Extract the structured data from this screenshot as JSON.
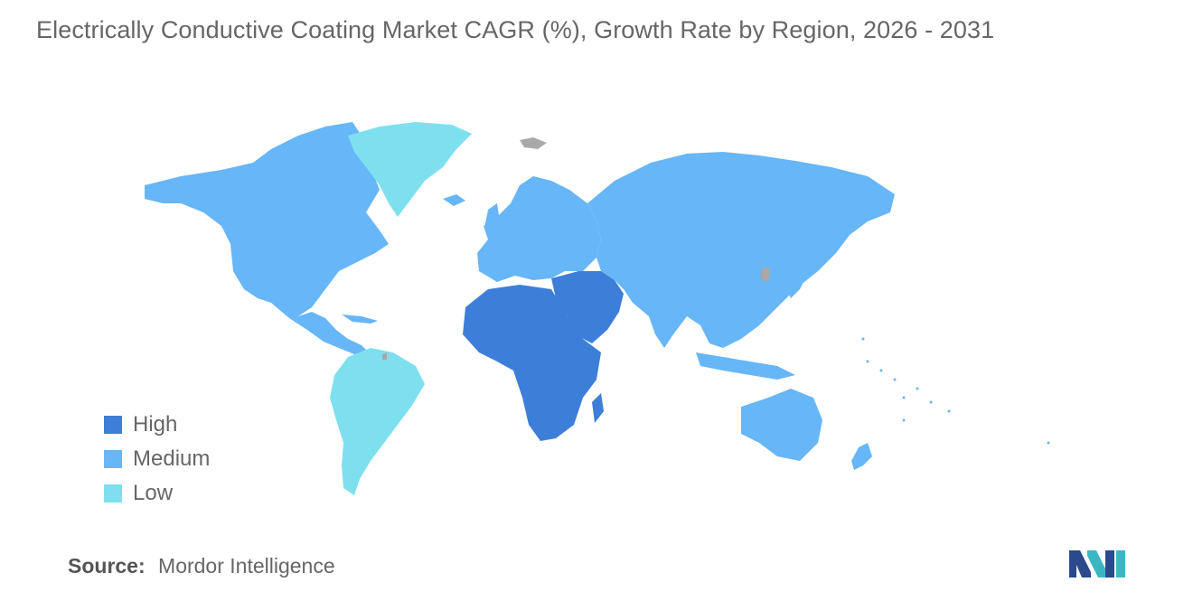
{
  "title": "Electrically Conductive Coating Market CAGR (%), Growth Rate by Region, 2026 - 2031",
  "legend": [
    {
      "label": "High",
      "color": "#3d7fd8"
    },
    {
      "label": "Medium",
      "color": "#67b6f7"
    },
    {
      "label": "Low",
      "color": "#7ee0ef"
    }
  ],
  "no_data_color": "#a9a9a9",
  "regions": [
    {
      "name": "North America",
      "level": "Medium"
    },
    {
      "name": "Europe",
      "level": "Medium"
    },
    {
      "name": "Asia-Pacific",
      "level": "Medium"
    },
    {
      "name": "Middle East and Africa",
      "level": "High"
    },
    {
      "name": "South America",
      "level": "Low"
    },
    {
      "name": "Greenland",
      "level": "Low"
    }
  ],
  "source": {
    "label": "Source:",
    "value": "Mordor Intelligence"
  },
  "logo": {
    "icon": "mordor-intelligence-logo-icon"
  }
}
